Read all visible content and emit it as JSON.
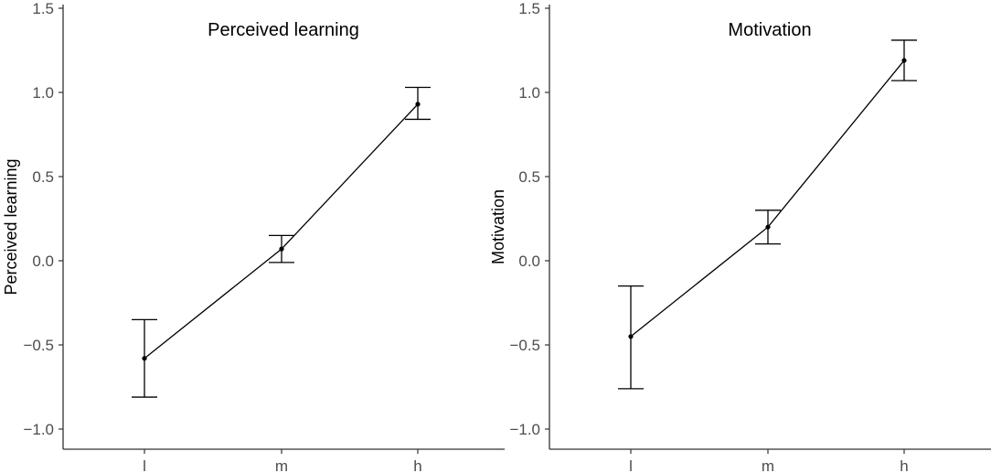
{
  "chart_data": [
    {
      "type": "line",
      "title": "Perceived learning",
      "xlabel": "",
      "ylabel": "Perceived learning",
      "categories": [
        "l",
        "m",
        "h"
      ],
      "series": [
        {
          "values": [
            -0.58,
            0.07,
            0.93
          ],
          "error_low": [
            -0.81,
            -0.01,
            0.84
          ],
          "error_high": [
            -0.35,
            0.15,
            1.03
          ]
        }
      ],
      "ylim": [
        -1.1,
        1.5
      ],
      "yticks": [
        -1.0,
        -0.5,
        0.0,
        0.5,
        1.0,
        1.5
      ],
      "ytick_labels": [
        "−1.0",
        "−0.5",
        "0.0",
        "0.5",
        "1.0",
        "1.5"
      ],
      "grid": false,
      "legend": "none"
    },
    {
      "type": "line",
      "title": "Motivation",
      "xlabel": "",
      "ylabel": "Motivation",
      "categories": [
        "l",
        "m",
        "h"
      ],
      "series": [
        {
          "values": [
            -0.45,
            0.2,
            1.19
          ],
          "error_low": [
            -0.76,
            0.1,
            1.07
          ],
          "error_high": [
            -0.15,
            0.3,
            1.31
          ]
        }
      ],
      "ylim": [
        -1.1,
        1.5
      ],
      "yticks": [
        -1.0,
        -0.5,
        0.0,
        0.5,
        1.0,
        1.5
      ],
      "ytick_labels": [
        "−1.0",
        "−0.5",
        "0.0",
        "0.5",
        "1.0",
        "1.5"
      ],
      "grid": false,
      "legend": "none"
    }
  ],
  "colors": {
    "line": "#000000",
    "axis": "#333333",
    "tick_text": "#4d4d4d"
  }
}
